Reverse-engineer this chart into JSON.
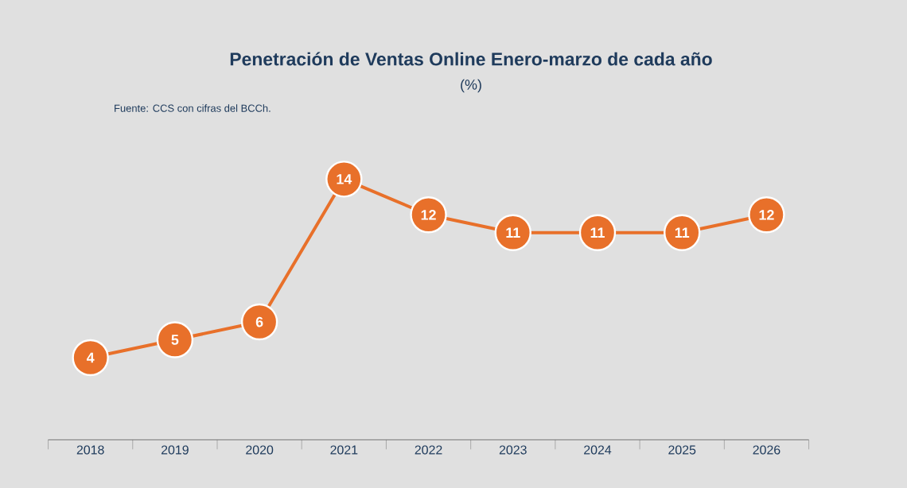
{
  "chart_data": {
    "type": "line",
    "title": "Penetración de Ventas Online Enero-marzo de cada año",
    "subtitle": "(%)",
    "annotations": [
      "Fuente: CCS con cifras del BCCh."
    ],
    "categories": [
      "2018",
      "2019",
      "2020",
      "2021",
      "2022",
      "2023",
      "2024",
      "2025",
      "2026"
    ],
    "values": [
      4,
      5,
      6,
      14,
      12,
      11,
      11,
      11,
      12
    ],
    "color": "#e8702a",
    "marker": "circle",
    "line_style": "solid",
    "data_labels": true
  }
}
